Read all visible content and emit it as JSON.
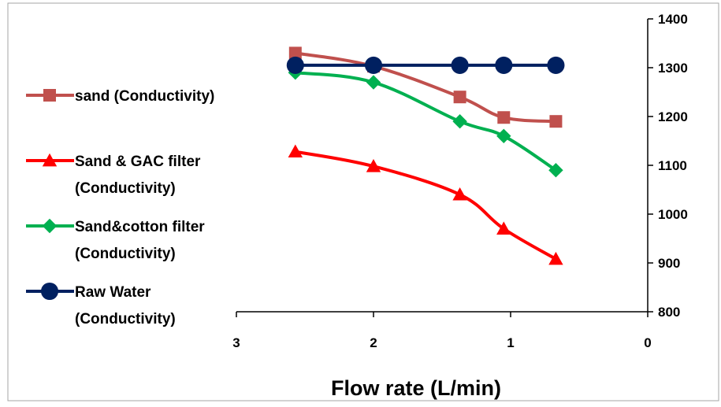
{
  "chart_data": {
    "type": "line",
    "title": "",
    "xlabel": "Flow rate (L/min)",
    "ylabel": "",
    "x_reversed": true,
    "xlim": [
      3,
      0
    ],
    "ylim": [
      800,
      1400
    ],
    "x_ticks": [
      "3",
      "2",
      "1",
      "0"
    ],
    "y_ticks": [
      "800",
      "900",
      "1000",
      "1100",
      "1200",
      "1300",
      "1400"
    ],
    "x": [
      2.57,
      2.0,
      1.37,
      1.05,
      0.67
    ],
    "y_axis_position": "right",
    "grid": false,
    "legend_position": "left",
    "series": [
      {
        "name_lines": [
          "sand (Conductivity)"
        ],
        "values": [
          1330,
          1303,
          1240,
          1198,
          1190
        ],
        "color": "#C0504D",
        "marker": "square"
      },
      {
        "name_lines": [
          "Sand & GAC filter",
          "(Conductivity)"
        ],
        "values": [
          1128,
          1098,
          1040,
          970,
          908
        ],
        "color": "#FF0000",
        "marker": "triangle"
      },
      {
        "name_lines": [
          "Sand&cotton filter",
          "(Conductivity)"
        ],
        "values": [
          1290,
          1270,
          1190,
          1160,
          1090
        ],
        "color": "#00B050",
        "marker": "diamond"
      },
      {
        "name_lines": [
          "Raw Water",
          "(Conductivity)"
        ],
        "values": [
          1305,
          1305,
          1305,
          1305,
          1305
        ],
        "color": "#002060",
        "marker": "circle"
      }
    ]
  }
}
